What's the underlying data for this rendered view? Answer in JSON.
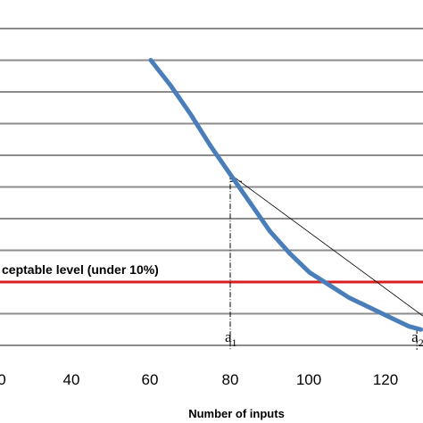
{
  "chart_data": {
    "type": "line",
    "xlabel": "Number of inputs",
    "x_ticks": [
      "0",
      "40",
      "60",
      "80",
      "100",
      "120"
    ],
    "grid": true,
    "series": [
      {
        "x": [
          60,
          65,
          70,
          75,
          80,
          85,
          90,
          95,
          100,
          105,
          110,
          115,
          120,
          125,
          128
        ],
        "y": [
          9.0,
          8.2,
          7.3,
          6.3,
          5.4,
          4.5,
          3.6,
          2.9,
          2.3,
          1.9,
          1.5,
          1.2,
          0.9,
          0.6,
          0.5
        ]
      }
    ],
    "threshold": {
      "label": "ceptable level (under 10%)",
      "y": 2.0,
      "color": "#d81e1e"
    },
    "secant": {
      "from_x": 80,
      "to_x": 127
    },
    "markers": [
      {
        "label": "a",
        "sub": "1",
        "x": 80
      },
      {
        "label": "a",
        "sub": "2",
        "x": 127
      }
    ],
    "colors": {
      "series": "#4a7ebb",
      "grid": "#8c8c8c",
      "threshold": "#d81e1e"
    }
  }
}
